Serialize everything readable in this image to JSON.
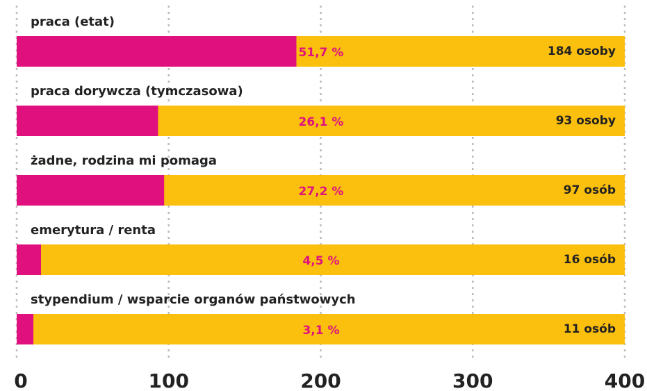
{
  "chart_data": {
    "type": "bar",
    "orientation": "horizontal",
    "categories": [
      "praca (etat)",
      "praca dorywcza (tymczasowa)",
      "żadne, rodzina mi pomaga",
      "emerytura / renta",
      "stypendium / wsparcie organów państwowych"
    ],
    "values": [
      184,
      93,
      97,
      16,
      11
    ],
    "value_labels": [
      "184 osoby",
      "93 osoby",
      "97 osób",
      "16 osób",
      "11 osób"
    ],
    "percent_labels": [
      "51,7 %",
      "26,1 %",
      "27,2 %",
      "4,5 %",
      "3,1 %"
    ],
    "color": "#e0117f",
    "track_color": "#fbbf0d",
    "xlim": [
      0,
      400
    ],
    "xticks": [
      0,
      100,
      200,
      300,
      400
    ],
    "grid": true
  }
}
